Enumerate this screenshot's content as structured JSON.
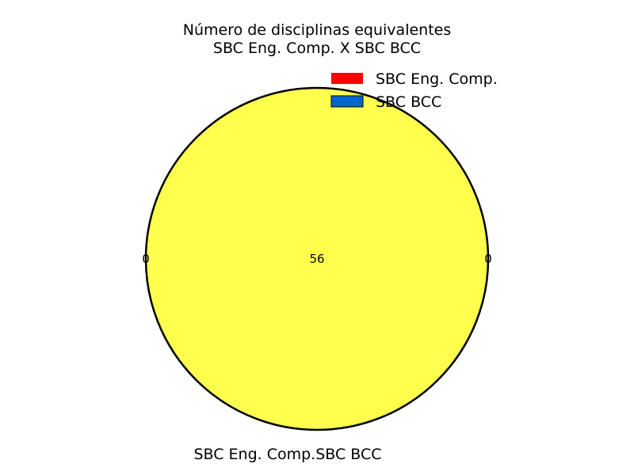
{
  "chart_data": {
    "type": "venn",
    "title": [
      "Número de disciplinas equivalentes",
      "SBC Eng. Comp. X SBC BCC"
    ],
    "sets": [
      {
        "name": "SBC Eng. Comp.",
        "color": "#ff0000"
      },
      {
        "name": "SBC BCC",
        "color": "#0066cc"
      }
    ],
    "regions": {
      "only_first": 0,
      "only_second": 0,
      "intersection": 56
    },
    "intersection_color": "#ffff4d",
    "set_labels": [
      "SBC Eng. Comp.",
      "SBC BCC"
    ],
    "legend_position": "top-right"
  }
}
